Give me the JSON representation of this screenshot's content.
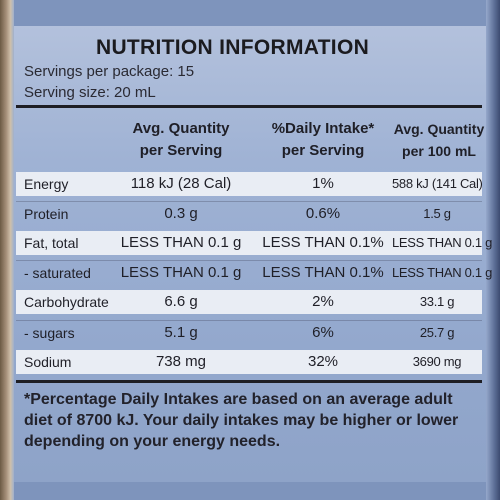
{
  "panel": {
    "title": "NUTRITION INFORMATION",
    "servings_per_package": "Servings per package: 15",
    "serving_size": "Serving size: 20 mL"
  },
  "columns": {
    "avg_per_serving": [
      "Avg. Quantity",
      "per Serving"
    ],
    "daily_intake": [
      "%Daily Intake*",
      "per Serving"
    ],
    "avg_per_100ml": [
      "Avg. Quantity",
      "per 100 mL"
    ]
  },
  "rows": [
    {
      "name": "Energy",
      "serving": "118 kJ (28 Cal)",
      "di": "1%",
      "per100": "588 kJ (141 Cal)"
    },
    {
      "name": "Protein",
      "serving": "0.3 g",
      "di": "0.6%",
      "per100": "1.5 g"
    },
    {
      "name": "Fat, total",
      "serving": "LESS THAN 0.1 g",
      "di": "LESS THAN 0.1%",
      "per100": "LESS THAN 0.1 g"
    },
    {
      "name": "- saturated",
      "serving": "LESS THAN 0.1 g",
      "di": "LESS THAN 0.1%",
      "per100": "LESS THAN 0.1 g"
    },
    {
      "name": "Carbohydrate",
      "serving": "6.6 g",
      "di": "2%",
      "per100": "33.1 g"
    },
    {
      "name": "- sugars",
      "serving": "5.1 g",
      "di": "6%",
      "per100": "25.7 g"
    },
    {
      "name": "Sodium",
      "serving": "738 mg",
      "di": "32%",
      "per100": "3690 mg"
    }
  ],
  "footnote": "*Percentage Daily Intakes are based on an average adult diet of 8700 kJ. Your daily intakes may be higher or lower depending on your energy needs.",
  "colors": {
    "panel_blue": "#93a8cd",
    "row_white": "#e9edf4",
    "text": "#1f1f27"
  }
}
